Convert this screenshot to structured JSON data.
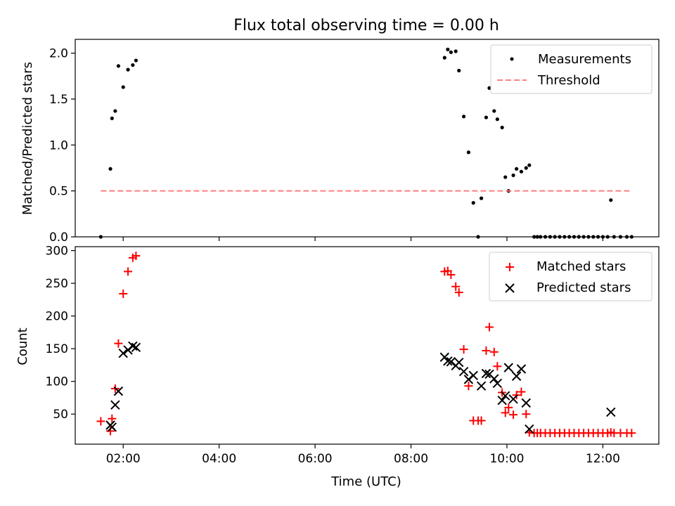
{
  "title": "Flux total observing time = 0.00 h",
  "colors": {
    "measurement": "#000000",
    "threshold": "#ff7f7f",
    "matched": "#ff0000",
    "predicted": "#000000"
  },
  "chart_data": [
    {
      "type": "scatter",
      "ylabel": "Matched/Predicted stars",
      "xlim": [
        "01:00",
        "13:10"
      ],
      "ylim": [
        0,
        2.15
      ],
      "yticks": [
        "0.0",
        "0.5",
        "1.0",
        "1.5",
        "2.0"
      ],
      "grid": false,
      "legend_position": "top-right",
      "series": [
        {
          "name": "Measurements",
          "marker": "dot",
          "points": [
            [
              "01:32",
              0.0
            ],
            [
              "01:44",
              0.74
            ],
            [
              "01:46",
              1.29
            ],
            [
              "01:50",
              1.37
            ],
            [
              "01:54",
              1.86
            ],
            [
              "02:00",
              1.63
            ],
            [
              "02:06",
              1.82
            ],
            [
              "02:12",
              1.87
            ],
            [
              "02:16",
              1.92
            ],
            [
              "08:42",
              1.95
            ],
            [
              "08:46",
              2.04
            ],
            [
              "08:50",
              2.01
            ],
            [
              "08:56",
              2.02
            ],
            [
              "09:00",
              1.81
            ],
            [
              "09:06",
              1.31
            ],
            [
              "09:12",
              0.92
            ],
            [
              "09:18",
              0.37
            ],
            [
              "09:24",
              0.0
            ],
            [
              "09:28",
              0.42
            ],
            [
              "09:34",
              1.3
            ],
            [
              "09:38",
              1.62
            ],
            [
              "09:44",
              1.37
            ],
            [
              "09:48",
              1.28
            ],
            [
              "09:54",
              1.19
            ],
            [
              "09:58",
              0.65
            ],
            [
              "10:02",
              0.5
            ],
            [
              "10:08",
              0.67
            ],
            [
              "10:12",
              0.74
            ],
            [
              "10:18",
              0.71
            ],
            [
              "10:24",
              0.75
            ],
            [
              "10:28",
              0.78
            ],
            [
              "10:34",
              0.0
            ],
            [
              "10:38",
              0.0
            ],
            [
              "10:42",
              0.0
            ],
            [
              "10:48",
              0.0
            ],
            [
              "10:54",
              0.0
            ],
            [
              "11:00",
              0.0
            ],
            [
              "11:06",
              0.0
            ],
            [
              "11:12",
              0.0
            ],
            [
              "11:18",
              0.0
            ],
            [
              "11:24",
              0.0
            ],
            [
              "11:30",
              0.0
            ],
            [
              "11:36",
              0.0
            ],
            [
              "11:42",
              0.0
            ],
            [
              "11:48",
              0.0
            ],
            [
              "11:54",
              0.0
            ],
            [
              "12:00",
              0.0
            ],
            [
              "12:06",
              0.0
            ],
            [
              "12:10",
              0.4
            ],
            [
              "12:14",
              0.0
            ],
            [
              "12:22",
              0.0
            ],
            [
              "12:30",
              0.0
            ],
            [
              "12:36",
              0.0
            ]
          ]
        },
        {
          "name": "Threshold",
          "style": "dashed",
          "points": [
            [
              "01:32",
              0.5
            ],
            [
              "12:36",
              0.5
            ]
          ]
        }
      ]
    },
    {
      "type": "scatter",
      "xlabel": "Time (UTC)",
      "ylabel": "Count",
      "xlim": [
        "01:00",
        "13:10"
      ],
      "ylim": [
        4,
        306
      ],
      "yticks": [
        "50",
        "100",
        "150",
        "200",
        "250",
        "300"
      ],
      "xticks": [
        "02:00",
        "04:00",
        "06:00",
        "08:00",
        "10:00",
        "12:00"
      ],
      "grid": false,
      "legend_position": "top-right",
      "series": [
        {
          "name": "Matched stars",
          "marker": "plus",
          "points": [
            [
              "01:32",
              39
            ],
            [
              "01:44",
              24
            ],
            [
              "01:46",
              43
            ],
            [
              "01:50",
              89
            ],
            [
              "01:54",
              158
            ],
            [
              "02:00",
              234
            ],
            [
              "02:06",
              268
            ],
            [
              "02:12",
              289
            ],
            [
              "02:16",
              292
            ],
            [
              "08:42",
              268
            ],
            [
              "08:46",
              269
            ],
            [
              "08:50",
              263
            ],
            [
              "08:56",
              245
            ],
            [
              "09:00",
              236
            ],
            [
              "09:06",
              149
            ],
            [
              "09:12",
              93
            ],
            [
              "09:18",
              40
            ],
            [
              "09:24",
              40
            ],
            [
              "09:28",
              40
            ],
            [
              "09:34",
              147
            ],
            [
              "09:38",
              183
            ],
            [
              "09:44",
              145
            ],
            [
              "09:48",
              123
            ],
            [
              "09:54",
              83
            ],
            [
              "09:58",
              52
            ],
            [
              "10:02",
              60
            ],
            [
              "10:08",
              49
            ],
            [
              "10:12",
              79
            ],
            [
              "10:18",
              84
            ],
            [
              "10:24",
              50
            ],
            [
              "10:28",
              22
            ],
            [
              "10:34",
              21
            ],
            [
              "10:38",
              21
            ],
            [
              "10:42",
              21
            ],
            [
              "10:48",
              21
            ],
            [
              "10:54",
              21
            ],
            [
              "11:00",
              21
            ],
            [
              "11:06",
              21
            ],
            [
              "11:12",
              21
            ],
            [
              "11:18",
              21
            ],
            [
              "11:24",
              21
            ],
            [
              "11:30",
              21
            ],
            [
              "11:36",
              21
            ],
            [
              "11:42",
              21
            ],
            [
              "11:48",
              21
            ],
            [
              "11:54",
              21
            ],
            [
              "12:00",
              21
            ],
            [
              "12:06",
              21
            ],
            [
              "12:10",
              22
            ],
            [
              "12:14",
              21
            ],
            [
              "12:22",
              21
            ],
            [
              "12:30",
              21
            ],
            [
              "12:36",
              21
            ]
          ]
        },
        {
          "name": "Predicted stars",
          "marker": "cross",
          "points": [
            [
              "01:44",
              33
            ],
            [
              "01:46",
              30
            ],
            [
              "01:50",
              64
            ],
            [
              "01:54",
              85
            ],
            [
              "02:00",
              143
            ],
            [
              "02:06",
              148
            ],
            [
              "02:12",
              154
            ],
            [
              "02:16",
              152
            ],
            [
              "08:42",
              137
            ],
            [
              "08:46",
              131
            ],
            [
              "08:50",
              130
            ],
            [
              "08:56",
              124
            ],
            [
              "09:00",
              129
            ],
            [
              "09:06",
              115
            ],
            [
              "09:12",
              103
            ],
            [
              "09:18",
              109
            ],
            [
              "09:28",
              93
            ],
            [
              "09:34",
              112
            ],
            [
              "09:38",
              111
            ],
            [
              "09:44",
              104
            ],
            [
              "09:48",
              97
            ],
            [
              "09:54",
              71
            ],
            [
              "09:58",
              78
            ],
            [
              "10:02",
              121
            ],
            [
              "10:08",
              73
            ],
            [
              "10:12",
              108
            ],
            [
              "10:18",
              119
            ],
            [
              "10:24",
              67
            ],
            [
              "10:28",
              27
            ],
            [
              "12:10",
              53
            ]
          ]
        }
      ]
    }
  ]
}
